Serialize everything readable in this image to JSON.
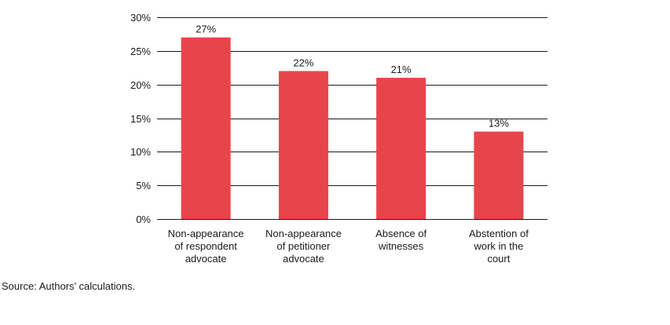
{
  "chart_data": {
    "type": "bar",
    "title": "",
    "xlabel": "",
    "ylabel": "",
    "categories": [
      [
        "Non-appearance",
        "of respondent",
        "advocate"
      ],
      [
        "Non-appearance",
        "of petitioner",
        "advocate"
      ],
      [
        "Absence of",
        "witnesses"
      ],
      [
        "Abstention of",
        "work in the",
        "court"
      ]
    ],
    "values": [
      27,
      22,
      21,
      13
    ],
    "value_labels": [
      "27%",
      "22%",
      "21%",
      "13%"
    ],
    "ylim": [
      0,
      30
    ],
    "yticks": [
      0,
      5,
      10,
      15,
      20,
      25,
      30
    ],
    "ytick_labels": [
      "0%",
      "5%",
      "10%",
      "15%",
      "20%",
      "25%",
      "30%"
    ],
    "grid": true,
    "legend": "none",
    "bar_color": "#e8454b",
    "grid_color": "#1a1a1a"
  },
  "footer": {
    "source": "Source: Authors’ calculations."
  }
}
